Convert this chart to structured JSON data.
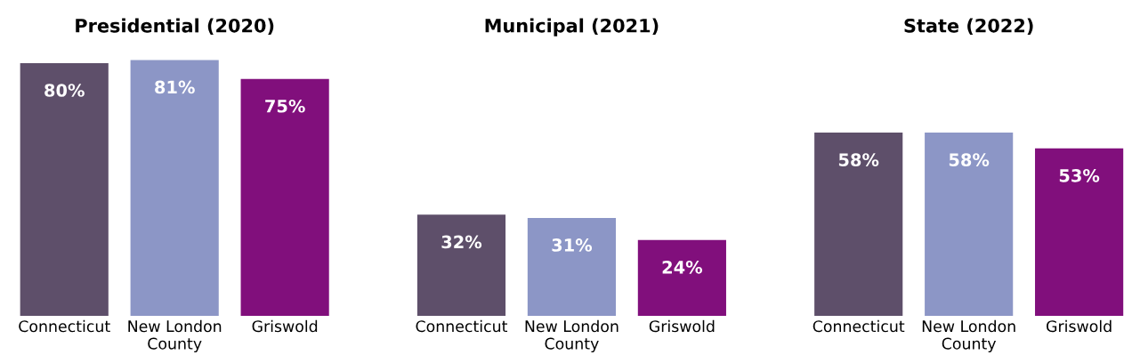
{
  "chart_data": [
    {
      "type": "bar",
      "title": "Presidential (2020)",
      "categories": [
        "Connecticut",
        "New London\nCounty",
        "Griswold"
      ],
      "values": [
        80,
        81,
        75
      ],
      "colors": [
        "#5e4f6a",
        "#8c96c6",
        "#810f7c"
      ],
      "data_labels": true,
      "value_labels": [
        "80%",
        "81%",
        "75%"
      ],
      "tick_labels": "x",
      "grid": false,
      "legend": false
    },
    {
      "type": "bar",
      "title": "Municipal (2021)",
      "categories": [
        "Connecticut",
        "New London\nCounty",
        "Griswold"
      ],
      "values": [
        32,
        31,
        24
      ],
      "colors": [
        "#5e4f6a",
        "#8c96c6",
        "#810f7c"
      ],
      "data_labels": true,
      "value_labels": [
        "32%",
        "31%",
        "24%"
      ],
      "tick_labels": "x",
      "grid": false,
      "legend": false
    },
    {
      "type": "bar",
      "title": "State (2022)",
      "categories": [
        "Connecticut",
        "New London\nCounty",
        "Griswold"
      ],
      "values": [
        58,
        58,
        53
      ],
      "colors": [
        "#5e4f6a",
        "#8c96c6",
        "#810f7c"
      ],
      "data_labels": true,
      "value_labels": [
        "58%",
        "58%",
        "53%"
      ],
      "tick_labels": "x",
      "grid": false,
      "legend": false
    }
  ]
}
